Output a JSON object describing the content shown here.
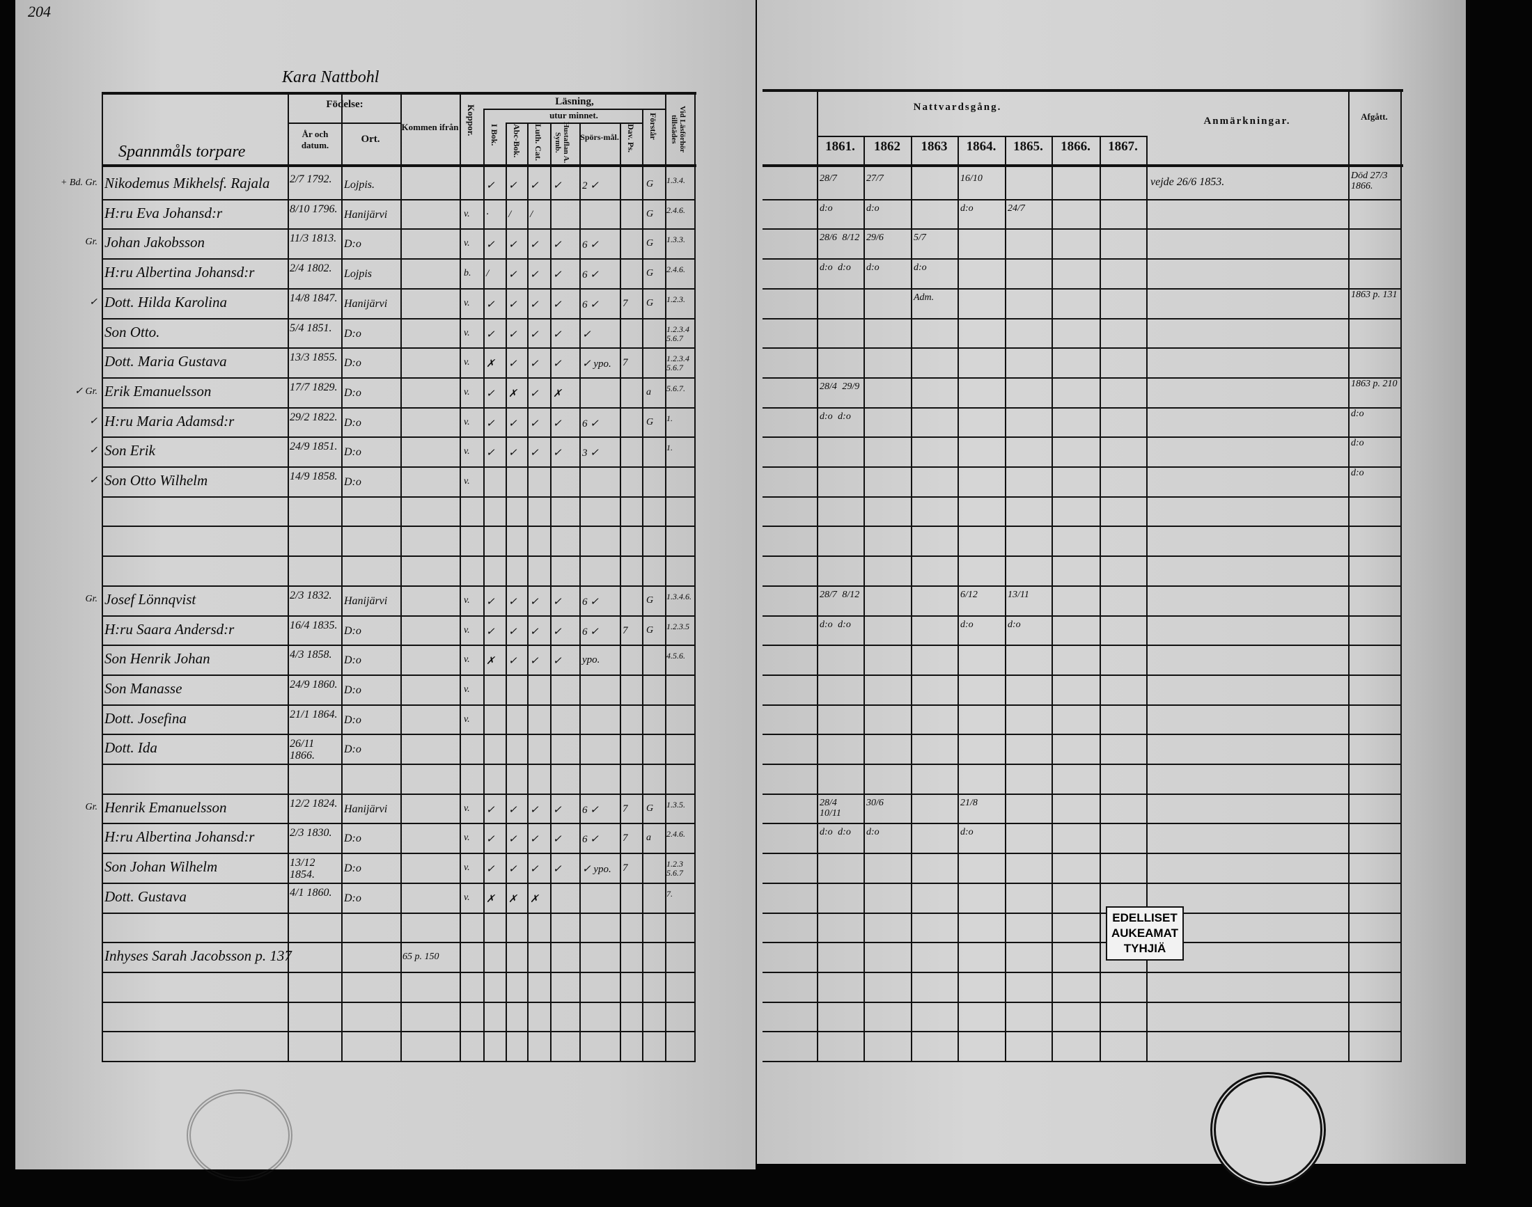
{
  "page_number": "204",
  "farm_title": "Kara Nattbohl",
  "household_heading": "Spannmåls torpare",
  "left_header": {
    "fodelse": "Födelse:",
    "ar_och_datum": "År och datum.",
    "ort": "Ort.",
    "kommen_ifran": "Kommen ifrån",
    "koppor": "Koppor.",
    "lasning": "Läsning,",
    "utur_minnet": "utur minnet.",
    "i_bok": "I Bok.",
    "abc_bok": "Abc-Bok.",
    "luth_cat": "Luth. Cat.",
    "hustaflan": "Hustaflan A. Symb.",
    "sporsmal": "Spörs-mål.",
    "dav_ps": "Dav. Ps.",
    "forstar": "Förstår",
    "lasforhor": "Vid Läsförhör tillstädes"
  },
  "right_header": {
    "nattvardsgang": "Nattvardsgång.",
    "years": [
      "1861.",
      "1862",
      "1863",
      "1864.",
      "1865.",
      "1866.",
      "1867."
    ],
    "anmarkningar": "Anmärkningar.",
    "afgatt": "Afgått."
  },
  "left_rows": [
    {
      "margin": "+ Bd. Gr.",
      "name": "Nikodemus Mikhelsf. Rajala",
      "date": "2/7 1792.",
      "ort": "Lojpis.",
      "kommen": "",
      "koppor": "",
      "r": [
        "✓",
        "✓",
        "✓",
        "✓",
        "2 ✓",
        ""
      ],
      "forstar": "G",
      "lasforhor": "1.3.4."
    },
    {
      "margin": "",
      "name": "H:ru Eva Johansd:r",
      "date": "8/10 1796.",
      "ort": "Hanijärvi",
      "kommen": "",
      "koppor": "v.",
      "r": [
        "·",
        "/",
        "/",
        "",
        "",
        ""
      ],
      "forstar": "G",
      "lasforhor": "2.4.6."
    },
    {
      "margin": "Gr.",
      "name": "Johan Jakobsson",
      "date": "11/3 1813.",
      "ort": "D:o",
      "kommen": "",
      "koppor": "v.",
      "r": [
        "✓",
        "✓",
        "✓",
        "✓",
        "6 ✓",
        ""
      ],
      "forstar": "G",
      "lasforhor": "1.3.3."
    },
    {
      "margin": "",
      "name": "H:ru Albertina Johansd:r",
      "date": "2/4 1802.",
      "ort": "Lojpis",
      "kommen": "",
      "koppor": "b.",
      "r": [
        "/",
        "✓",
        "✓",
        "✓",
        "6 ✓",
        ""
      ],
      "forstar": "G",
      "lasforhor": "2.4.6."
    },
    {
      "margin": "✓",
      "name": "Dott. Hilda Karolina",
      "date": "14/8 1847.",
      "ort": "Hanijärvi",
      "kommen": "",
      "koppor": "v.",
      "r": [
        "✓",
        "✓",
        "✓",
        "✓",
        "6 ✓",
        "7"
      ],
      "forstar": "G",
      "lasforhor": "1.2.3."
    },
    {
      "margin": "",
      "name": "Son Otto.",
      "date": "5/4 1851.",
      "ort": "D:o",
      "kommen": "",
      "koppor": "v.",
      "r": [
        "✓",
        "✓",
        "✓",
        "✓",
        "✓",
        ""
      ],
      "forstar": "",
      "lasforhor": "1.2.3.4 5.6.7"
    },
    {
      "margin": "",
      "name": "Dott. Maria Gustava",
      "date": "13/3 1855.",
      "ort": "D:o",
      "kommen": "",
      "koppor": "v.",
      "r": [
        "✗",
        "✓",
        "✓",
        "✓",
        "✓ ypo.",
        "7"
      ],
      "forstar": "",
      "lasforhor": "1.2.3.4 5.6.7"
    },
    {
      "margin": "✓ Gr.",
      "name": "Erik Emanuelsson",
      "date": "17/7 1829.",
      "ort": "D:o",
      "kommen": "",
      "koppor": "v.",
      "r": [
        "✓",
        "✗",
        "✓",
        "✗",
        "",
        ""
      ],
      "forstar": "a",
      "lasforhor": "5.6.7."
    },
    {
      "margin": "✓",
      "name": "H:ru Maria Adamsd:r",
      "date": "29/2 1822.",
      "ort": "D:o",
      "kommen": "",
      "koppor": "v.",
      "r": [
        "✓",
        "✓",
        "✓",
        "✓",
        "6 ✓",
        ""
      ],
      "forstar": "G",
      "lasforhor": "1."
    },
    {
      "margin": "✓",
      "name": "Son Erik",
      "date": "24/9 1851.",
      "ort": "D:o",
      "kommen": "",
      "koppor": "v.",
      "r": [
        "✓",
        "✓",
        "✓",
        "✓",
        "3 ✓",
        ""
      ],
      "forstar": "",
      "lasforhor": "1."
    },
    {
      "margin": "✓",
      "name": "Son Otto Wilhelm",
      "date": "14/9 1858.",
      "ort": "D:o",
      "kommen": "",
      "koppor": "v.",
      "r": [
        "",
        "",
        "",
        "",
        "",
        ""
      ],
      "forstar": "",
      "lasforhor": ""
    },
    {},
    {},
    {},
    {
      "margin": "Gr.",
      "name": "Josef Lönnqvist",
      "date": "2/3 1832.",
      "ort": "Hanijärvi",
      "kommen": "",
      "koppor": "v.",
      "r": [
        "✓",
        "✓",
        "✓",
        "✓",
        "6 ✓",
        ""
      ],
      "forstar": "G",
      "lasforhor": "1.3.4.6."
    },
    {
      "margin": "",
      "name": "H:ru Saara Andersd:r",
      "date": "16/4 1835.",
      "ort": "D:o",
      "kommen": "",
      "koppor": "v.",
      "r": [
        "✓",
        "✓",
        "✓",
        "✓",
        "6 ✓",
        "7"
      ],
      "forstar": "G",
      "lasforhor": "1.2.3.5"
    },
    {
      "margin": "",
      "name": "Son Henrik Johan",
      "date": "4/3 1858.",
      "ort": "D:o",
      "kommen": "",
      "koppor": "v.",
      "r": [
        "✗",
        "✓",
        "✓",
        "✓",
        "ypo.",
        ""
      ],
      "forstar": "",
      "lasforhor": "4.5.6."
    },
    {
      "margin": "",
      "name": "Son Manasse",
      "date": "24/9 1860.",
      "ort": "D:o",
      "kommen": "",
      "koppor": "v.",
      "r": [
        "",
        "",
        "",
        "",
        "",
        ""
      ],
      "forstar": "",
      "lasforhor": ""
    },
    {
      "margin": "",
      "name": "Dott. Josefina",
      "date": "21/1 1864.",
      "ort": "D:o",
      "kommen": "",
      "koppor": "v.",
      "r": [
        "",
        "",
        "",
        "",
        "",
        ""
      ],
      "forstar": "",
      "lasforhor": ""
    },
    {
      "margin": "",
      "name": "Dott. Ida",
      "date": "26/11 1866.",
      "ort": "D:o",
      "kommen": "",
      "koppor": "",
      "r": [
        "",
        "",
        "",
        "",
        "",
        ""
      ],
      "forstar": "",
      "lasforhor": ""
    },
    {},
    {
      "margin": "Gr.",
      "name": "Henrik Emanuelsson",
      "date": "12/2 1824.",
      "ort": "Hanijärvi",
      "kommen": "",
      "koppor": "v.",
      "r": [
        "✓",
        "✓",
        "✓",
        "✓",
        "6 ✓",
        "7"
      ],
      "forstar": "G",
      "lasforhor": "1.3.5."
    },
    {
      "margin": "",
      "name": "H:ru Albertina Johansd:r",
      "date": "2/3 1830.",
      "ort": "D:o",
      "kommen": "",
      "koppor": "v.",
      "r": [
        "✓",
        "✓",
        "✓",
        "✓",
        "6 ✓",
        "7"
      ],
      "forstar": "a",
      "lasforhor": "2.4.6."
    },
    {
      "margin": "",
      "name": "Son Johan Wilhelm",
      "date": "13/12 1854.",
      "ort": "D:o",
      "kommen": "",
      "koppor": "v.",
      "r": [
        "✓",
        "✓",
        "✓",
        "✓",
        "✓ ypo.",
        "7"
      ],
      "forstar": "",
      "lasforhor": "1.2.3 5.6.7"
    },
    {
      "margin": "",
      "name": "Dott. Gustava",
      "date": "4/1 1860.",
      "ort": "D:o",
      "kommen": "",
      "koppor": "v.",
      "r": [
        "✗",
        "✗",
        "✗",
        "",
        "",
        ""
      ],
      "forstar": "",
      "lasforhor": "7."
    },
    {},
    {
      "margin": "",
      "name": "Inhyses Sarah Jacobsson p. 137",
      "date": "",
      "ort": "",
      "kommen": "65 p. 150",
      "koppor": "",
      "r": [
        "",
        "",
        "",
        "",
        "",
        ""
      ],
      "forstar": "",
      "lasforhor": ""
    },
    {},
    {}
  ],
  "right_rows": [
    {
      "n": [
        "28/7",
        "27/7",
        "",
        "16/10",
        "",
        "",
        ""
      ],
      "anm": "vejde 26/6 1853.",
      "afgatt": "Död 27/3 1866."
    },
    {
      "n": [
        "d:o",
        "d:o",
        "",
        "d:o",
        "24/7",
        "",
        ""
      ],
      "anm": "",
      "afgatt": ""
    },
    {
      "n": [
        "28/6  8/12",
        "29/6",
        "5/7",
        "",
        "",
        "",
        ""
      ],
      "anm": "",
      "afgatt": ""
    },
    {
      "n": [
        "d:o  d:o",
        "d:o",
        "d:o",
        "",
        "",
        "",
        ""
      ],
      "anm": "",
      "afgatt": ""
    },
    {
      "n": [
        "",
        "",
        "Adm.",
        "",
        "",
        "",
        ""
      ],
      "anm": "",
      "afgatt": "1863 p. 131"
    },
    {},
    {},
    {
      "n": [
        "28/4  29/9",
        "",
        "",
        "",
        "",
        "",
        ""
      ],
      "anm": "",
      "afgatt": "1863 p. 210"
    },
    {
      "n": [
        "d:o  d:o",
        "",
        "",
        "",
        "",
        "",
        ""
      ],
      "anm": "",
      "afgatt": "d:o"
    },
    {
      "n": [
        "",
        "",
        "",
        "",
        "",
        "",
        ""
      ],
      "anm": "",
      "afgatt": "d:o"
    },
    {
      "n": [
        "",
        "",
        "",
        "",
        "",
        "",
        ""
      ],
      "anm": "",
      "afgatt": "d:o"
    },
    {},
    {},
    {},
    {
      "n": [
        "28/7  8/12",
        "",
        "",
        "6/12",
        "13/11",
        "",
        ""
      ],
      "anm": "",
      "afgatt": ""
    },
    {
      "n": [
        "d:o  d:o",
        "",
        "",
        "d:o",
        "d:o",
        "",
        ""
      ],
      "anm": "",
      "afgatt": ""
    },
    {},
    {},
    {},
    {},
    {},
    {
      "n": [
        "28/4  10/11",
        "30/6",
        "",
        "21/8",
        "",
        "",
        ""
      ],
      "anm": "",
      "afgatt": ""
    },
    {
      "n": [
        "d:o  d:o",
        "d:o",
        "",
        "d:o",
        "",
        "",
        ""
      ],
      "anm": "",
      "afgatt": ""
    }
  ],
  "stamp": {
    "lines": [
      "EDELLISET",
      "AUKEAMAT",
      "TYHJIÄ"
    ]
  }
}
